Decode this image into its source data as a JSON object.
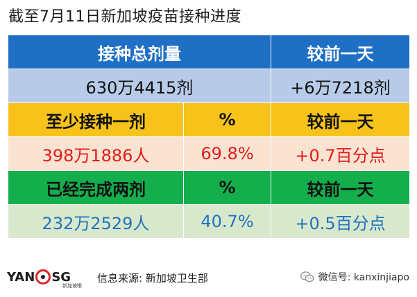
{
  "title": "截至7月11日新加坡疫苗接种进度",
  "table": {
    "row1": {
      "c1": "接种总剂量",
      "c2": "较前一天"
    },
    "row2": {
      "c1": "630万4415剂",
      "c2": "+6万7218剂"
    },
    "row3": {
      "c1": "至少接种一剂",
      "c2": "%",
      "c3": "较前一天"
    },
    "row4": {
      "c1": "398万1886人",
      "c2": "69.8%",
      "c3": "+0.7百分点"
    },
    "row5": {
      "c1": "已经完成两剂",
      "c2": "%",
      "c3": "较前一天"
    },
    "row6": {
      "c1": "232万2529人",
      "c2": "40.7%",
      "c3": "+0.5百分点"
    }
  },
  "footer": {
    "logo_left": "YAN",
    "logo_right": "SG",
    "logo_sub": "新加坡眼",
    "source": "信息来源:  新加坡卫生部",
    "wechat": "微信号: kanxinjiapo"
  },
  "colors": {
    "header_blue": "#1f6fc4",
    "value_light_blue": "#b7cbe9",
    "header_gold": "#f7c31b",
    "value_peach": "#fbe3d2",
    "header_green": "#14ae4d",
    "value_light_green": "#d8e8cd",
    "red_text": "#e31b1b",
    "blue_text": "#2173bd"
  },
  "icons": {
    "wechat": "wechat-icon",
    "logo": "logo-ring-icon"
  }
}
